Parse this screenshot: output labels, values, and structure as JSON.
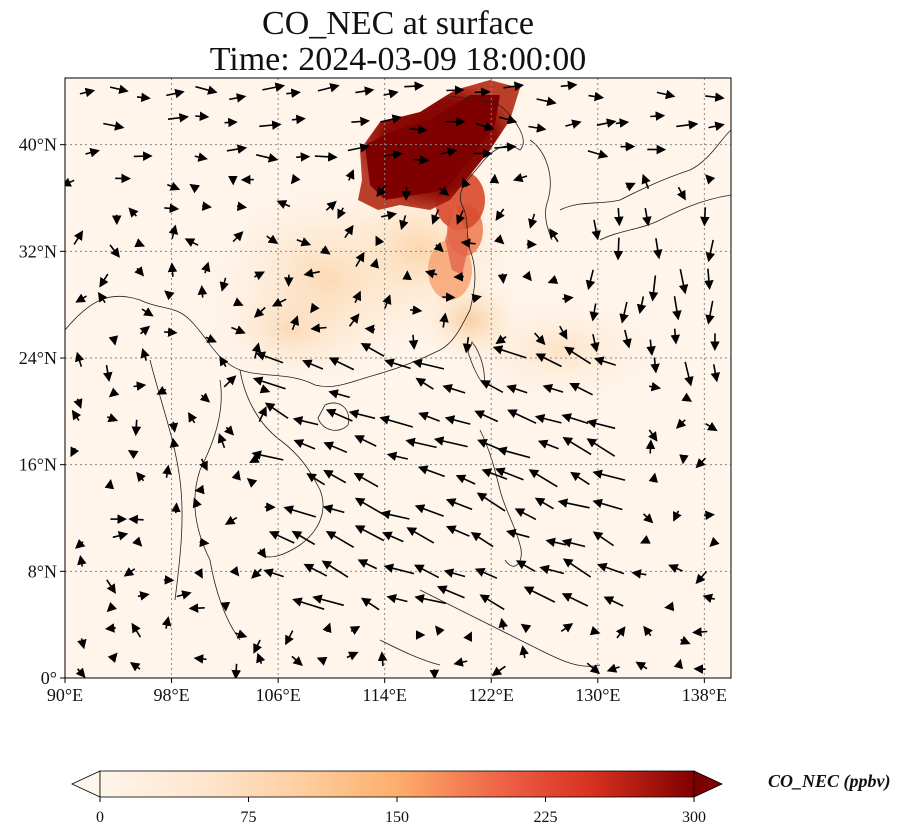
{
  "title": "CO_NEC at surface",
  "subtitle": "Time: 2024-03-09 18:00:00",
  "map_data": {
    "type": "map",
    "lon_range": [
      90,
      140
    ],
    "lat_range": [
      0,
      45
    ],
    "lon_ticks": [
      "90°E",
      "98°E",
      "106°E",
      "114°E",
      "122°E",
      "130°E",
      "138°E"
    ],
    "lon_tick_values": [
      90,
      98,
      106,
      114,
      122,
      130,
      138
    ],
    "lat_ticks": [
      "0°",
      "8°N",
      "16°N",
      "24°N",
      "32°N",
      "40°N"
    ],
    "lat_tick_values": [
      0,
      8,
      16,
      24,
      32,
      40
    ],
    "grid": true,
    "field": "CO_NEC",
    "vectors": "wind arrows"
  },
  "colorbar": {
    "label": "CO_NEC (ppbv)",
    "ticks": [
      "0",
      "75",
      "150",
      "225",
      "300"
    ],
    "tick_values": [
      0,
      75,
      150,
      225,
      300
    ],
    "range": [
      0,
      300
    ],
    "extend": "both",
    "colormap": [
      "#fff5eb",
      "#fdd9b1",
      "#fdae6b",
      "#f16913",
      "#d94801",
      "#a50f15",
      "#7f0000"
    ]
  }
}
